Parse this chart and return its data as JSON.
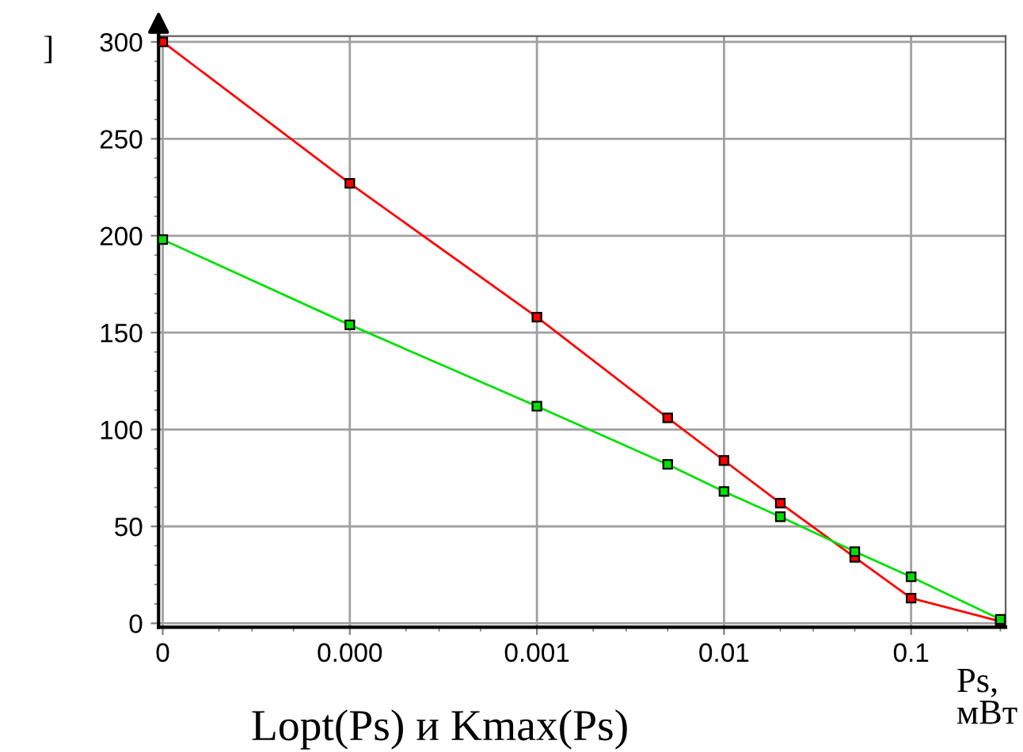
{
  "chart_data": {
    "type": "line",
    "log": "x",
    "xlabel": "Ps, мВт",
    "ylabel": "]",
    "annotations": [
      "Lopt(Ps) и Kmax(Ps)"
    ],
    "x": [
      1e-05,
      0.0001,
      0.001,
      0.005,
      0.01,
      0.02,
      0.05,
      0.1,
      0.3
    ],
    "series": [
      {
        "color": "#ff0000",
        "values": [
          300,
          227,
          158,
          106,
          84,
          62,
          34,
          13,
          1
        ]
      },
      {
        "color": "#00e000",
        "values": [
          198,
          154,
          112,
          82,
          68,
          55,
          37,
          24,
          2
        ]
      }
    ],
    "xlim": [
      9.5e-06,
      0.32
    ],
    "xticks": [
      {
        "value": 1e-05,
        "label": "0"
      },
      {
        "value": 0.0001,
        "label": "0.000"
      },
      0.001,
      0.01,
      0.1
    ],
    "ylim": [
      -2,
      303
    ],
    "yticks": [
      0,
      50,
      100,
      150,
      200,
      250,
      300
    ],
    "grid": true,
    "marker": "square",
    "line_style": "solid",
    "legend": false
  }
}
